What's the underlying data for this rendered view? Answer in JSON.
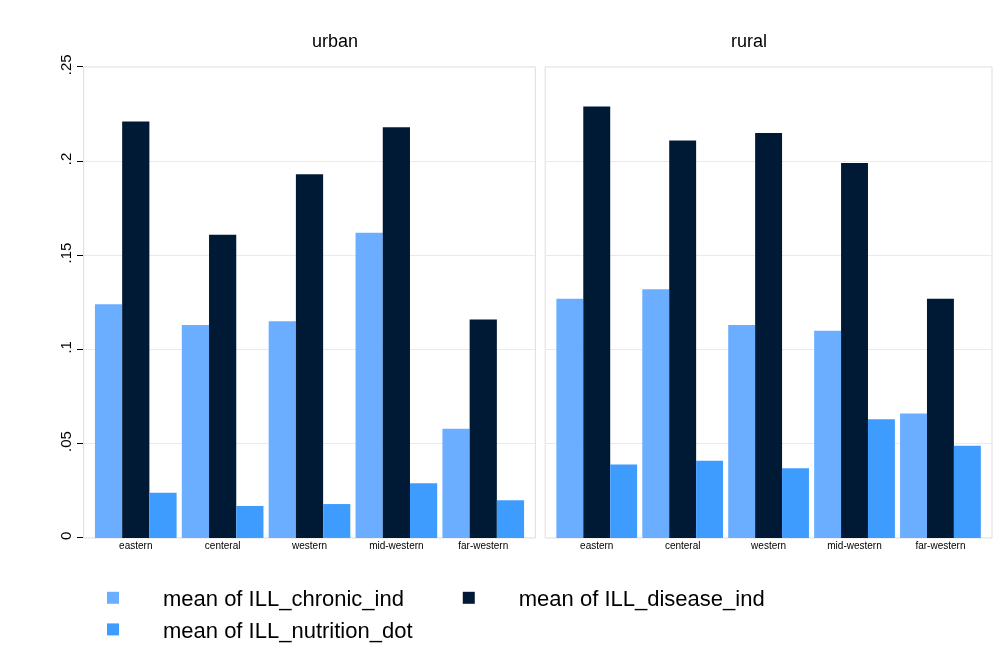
{
  "chart_data": [
    {
      "type": "bar",
      "title": "urban",
      "categories": [
        "eastern",
        "centeral",
        "western",
        "mid-western",
        "far-western"
      ],
      "series": [
        {
          "name": "mean of ILL_chronic_ind",
          "color": "#6baeff",
          "values": [
            0.124,
            0.113,
            0.115,
            0.162,
            0.058
          ]
        },
        {
          "name": "mean of ILL_disease_ind",
          "color": "#001a35",
          "values": [
            0.221,
            0.161,
            0.193,
            0.218,
            0.116
          ]
        },
        {
          "name": "mean of ILL_nutrition_dot",
          "color": "#3f9cff",
          "values": [
            0.024,
            0.017,
            0.018,
            0.029,
            0.02
          ]
        }
      ],
      "ylim": [
        0,
        0.25
      ],
      "yticks": [
        {
          "value": 0,
          "label": "0"
        },
        {
          "value": 0.05,
          "label": ".05"
        },
        {
          "value": 0.1,
          "label": ".1"
        },
        {
          "value": 0.15,
          "label": ".15"
        },
        {
          "value": 0.2,
          "label": ".2"
        },
        {
          "value": 0.25,
          "label": ".25"
        }
      ],
      "grid": "y",
      "legend": "bottom"
    },
    {
      "type": "bar",
      "title": "rural",
      "categories": [
        "eastern",
        "centeral",
        "western",
        "mid-western",
        "far-western"
      ],
      "series": [
        {
          "color": "#6baeff",
          "values": [
            0.127,
            0.132,
            0.113,
            0.11,
            0.066
          ]
        },
        {
          "color": "#001a35",
          "values": [
            0.229,
            0.211,
            0.215,
            0.199,
            0.127
          ]
        },
        {
          "color": "#3f9cff",
          "values": [
            0.039,
            0.041,
            0.037,
            0.063,
            0.049
          ]
        }
      ],
      "ylim": [
        0,
        0.25
      ],
      "yticks": [
        {
          "value": 0,
          "label": null
        },
        {
          "value": 0.05,
          "label": null
        },
        {
          "value": 0.1,
          "label": null
        },
        {
          "value": 0.15,
          "label": null
        },
        {
          "value": 0.2,
          "label": null
        },
        {
          "value": 0.25,
          "label": null
        }
      ],
      "grid": "y",
      "tick_labels": "x"
    }
  ]
}
